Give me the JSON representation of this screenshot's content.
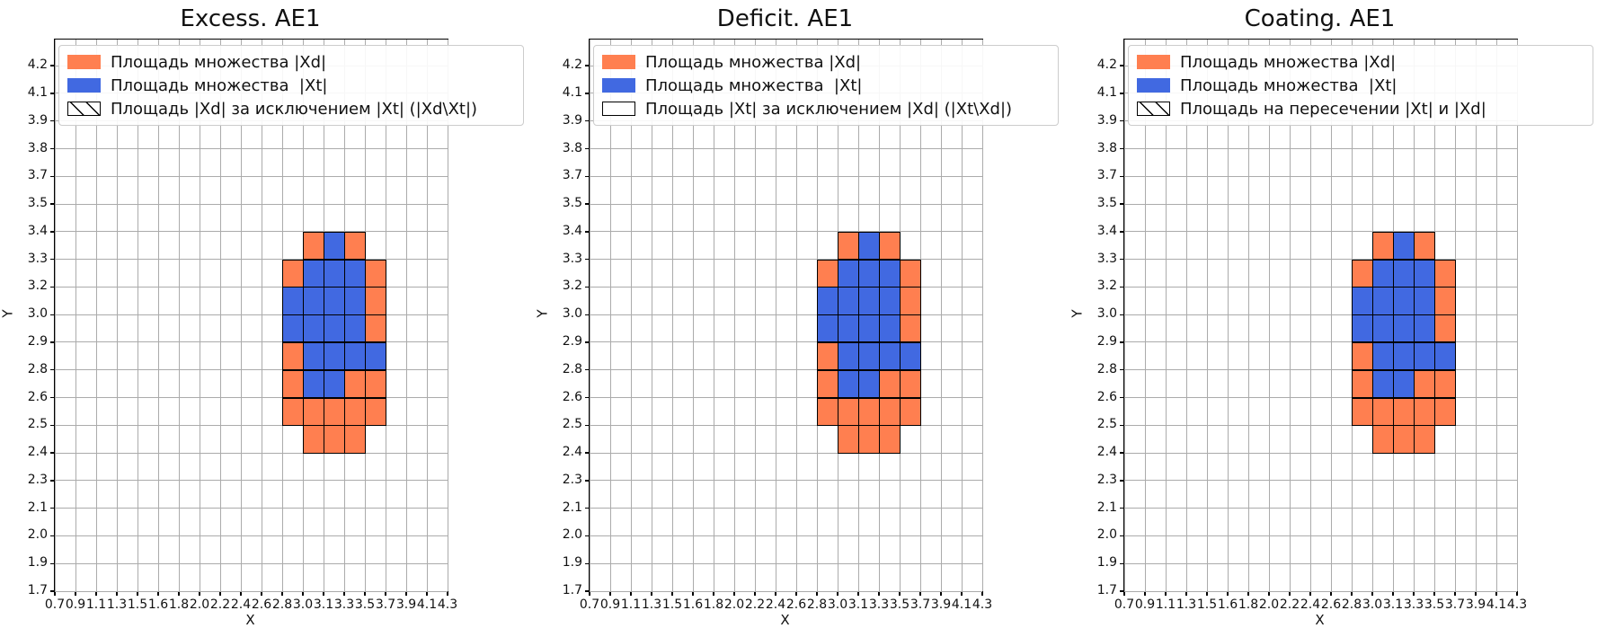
{
  "figure": {
    "xlabel": "X",
    "ylabel": "Y",
    "x_ticks": [
      "0.7",
      "0.9",
      "1.1",
      "1.3",
      "1.5",
      "1.6",
      "1.8",
      "2.0",
      "2.2",
      "2.4",
      "2.6",
      "2.8",
      "3.0",
      "3.1",
      "3.3",
      "3.5",
      "3.7",
      "3.9",
      "4.1",
      "4.3"
    ],
    "y_ticks": [
      "4.2",
      "4.1",
      "3.9",
      "3.8",
      "3.7",
      "3.5",
      "3.4",
      "3.3",
      "3.2",
      "3.0",
      "2.9",
      "2.8",
      "2.6",
      "2.5",
      "2.4",
      "2.3",
      "2.1",
      "2.0",
      "1.9",
      "1.7"
    ],
    "colors": {
      "xd_orange": "#FF7F50",
      "xt_blue": "#4169E1",
      "grid": "#ABABAB",
      "spine": "#000000",
      "hatch": "#000000",
      "legend_border": "#CCCCCC"
    }
  },
  "plots": [
    {
      "title": "Excess. AE1",
      "hatch_on": "O",
      "legend": [
        {
          "label": "Площадь множества |Xd|",
          "patch": "orange"
        },
        {
          "label": "Площадь множества  |Xt|",
          "patch": "blue"
        },
        {
          "label": "Площадь |Xd| за исключением |Xt| (|Xd\\Xt|)",
          "patch": "hatch"
        }
      ]
    },
    {
      "title": "Deficit. AE1",
      "hatch_on": "none",
      "legend": [
        {
          "label": "Площадь множества |Xd|",
          "patch": "orange"
        },
        {
          "label": "Площадь множества  |Xt|",
          "patch": "blue"
        },
        {
          "label": "Площадь |Xt| за исключением |Xd| (|Xt\\Xd|)",
          "patch": "empty"
        }
      ]
    },
    {
      "title": "Coating. AE1",
      "hatch_on": "B",
      "legend": [
        {
          "label": "Площадь множества |Xd|",
          "patch": "orange"
        },
        {
          "label": "Площадь множества  |Xt|",
          "patch": "blue"
        },
        {
          "label": "Площадь на пересечении |Xt| и |Xd|",
          "patch": "hatch"
        }
      ]
    }
  ],
  "chart_data": {
    "type": "heatmap",
    "panels": [
      "Excess. AE1",
      "Deficit. AE1",
      "Coating. AE1"
    ],
    "xlabel": "X",
    "ylabel": "Y",
    "x_tick_labels": [
      "0.7",
      "0.9",
      "1.1",
      "1.3",
      "1.5",
      "1.6",
      "1.8",
      "2.0",
      "2.2",
      "2.4",
      "2.6",
      "2.8",
      "3.0",
      "3.1",
      "3.3",
      "3.5",
      "3.7",
      "3.9",
      "4.1",
      "4.3"
    ],
    "y_tick_labels_top_to_bottom": [
      "4.2",
      "4.1",
      "3.9",
      "3.8",
      "3.7",
      "3.5",
      "3.4",
      "3.3",
      "3.2",
      "3.0",
      "2.9",
      "2.8",
      "2.6",
      "2.5",
      "2.4",
      "2.3",
      "2.1",
      "2.0",
      "1.9",
      "1.7"
    ],
    "grid_on": true,
    "legend_position": "upper left",
    "cell_sets": {
      "O": "Xd (orange)",
      "B": "Xt (blue)"
    },
    "x_cell_edges": [
      "2.6",
      "2.8",
      "3.0",
      "3.1",
      "3.3",
      "3.5",
      "3.7"
    ],
    "y_cell_edges_top_to_bottom": [
      "3.4",
      "3.3",
      "3.2",
      "3.0",
      "2.9",
      "2.8",
      "2.6",
      "2.5",
      "2.4"
    ],
    "grid_rows_top_to_bottom": [
      [
        "",
        "",
        "O",
        "B",
        "O",
        ""
      ],
      [
        "",
        "O",
        "B",
        "B",
        "B",
        "O"
      ],
      [
        "",
        "B",
        "B",
        "B",
        "B",
        "O"
      ],
      [
        "",
        "B",
        "B",
        "B",
        "B",
        "O"
      ],
      [
        "",
        "O",
        "B",
        "B",
        "B",
        "B"
      ],
      [
        "",
        "O",
        "B",
        "B",
        "O",
        "O"
      ],
      [
        "",
        "O",
        "O",
        "O",
        "O",
        "O"
      ],
      [
        "",
        "",
        "O",
        "O",
        "O",
        ""
      ]
    ],
    "hatched_cells_per_panel": {
      "Excess. AE1": "orange Xd cells hatched (/)",
      "Deficit. AE1": "no hatching",
      "Coating. AE1": "blue Xt cells hatched (/)"
    }
  }
}
